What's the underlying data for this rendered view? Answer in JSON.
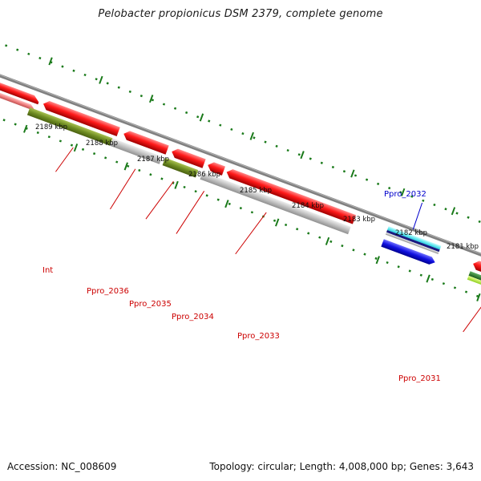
{
  "title": "Pelobacter propionicus DSM 2379, complete genome",
  "footer": {
    "accession": "Accession: NC_008609",
    "summary": "Topology: circular; Length: 4,008,000 bp; Genes: 3,643"
  },
  "ruler": {
    "ticks": [
      "2189 kbp",
      "2188 kbp",
      "2187 kbp",
      "2186 kbp",
      "2185 kbp",
      "2184 kbp",
      "2183 kbp",
      "2182 kbp",
      "2181 kbp"
    ],
    "color": "#1a7a1a"
  },
  "backbone_color": "#808080",
  "genes": [
    {
      "label": "Int",
      "color": "#cc0000"
    },
    {
      "label": "Ppro_2036",
      "color": "#cc0000"
    },
    {
      "label": "Ppro_2035",
      "color": "#cc0000"
    },
    {
      "label": "Ppro_2034",
      "color": "#cc0000"
    },
    {
      "label": "Ppro_2033",
      "color": "#cc0000"
    },
    {
      "label": "Ppro_2032",
      "color": "#0000cc"
    },
    {
      "label": "Ppro_2031",
      "color": "#cc0000"
    }
  ],
  "feature_colors": {
    "cds": "#e00000",
    "cds_light": "#f07070",
    "gene_olive": "#6e8c22",
    "gene_gray": "#b8b8b8",
    "gene_blue": "#1010e0",
    "gene_cyan": "#20e0f0",
    "gene_green": "#2a7a2a",
    "gene_lime": "#b0f040"
  }
}
